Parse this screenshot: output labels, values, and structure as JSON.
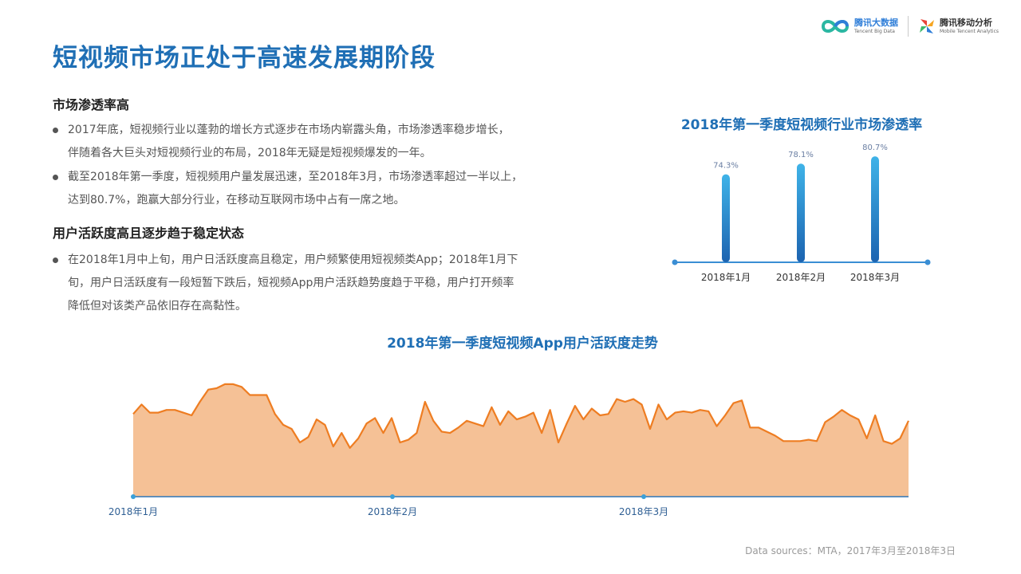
{
  "logos": {
    "tbd": {
      "name_cn": "腾讯大数据",
      "name_en": "Tencent Big Data"
    },
    "mta": {
      "name_cn": "腾讯移动分析",
      "name_en": "Mobile Tencent Analytics"
    }
  },
  "page_title": "短视频市场正处于高速发展期阶段",
  "sections": [
    {
      "heading": "市场渗透率高",
      "bullets": [
        {
          "line1": "2017年底，短视频行业以蓬勃的增长方式逐步在市场内崭露头角，市场渗透率稳步增长，",
          "line2": "伴随着各大巨头对短视频行业的布局，2018年无疑是短视频爆发的一年。"
        },
        {
          "line1": "截至2018年第一季度，短视频用户量发展迅速，至2018年3月，市场渗透率超过一半以上，",
          "line2": "达到80.7%，跑赢大部分行业，在移动互联网市场中占有一席之地。"
        }
      ]
    },
    {
      "heading": "用户活跃度高且逐步趋于稳定状态",
      "bullets": [
        {
          "line1": "在2018年1月中上旬，用户日活跃度高且稳定，用户频繁使用短视频类App；2018年1月下",
          "line2": "旬，用户日活跃度有一段短暂下跌后，短视频App用户活跃趋势度趋于平稳，用户打开频率",
          "line3": "降低但对该类产品依旧存在高黏性。"
        }
      ]
    }
  ],
  "chart_data": [
    {
      "type": "bar",
      "title": "2018年第一季度短视频行业市场渗透率",
      "categories": [
        "2018年1月",
        "2018年2月",
        "2018年3月"
      ],
      "values": [
        74.3,
        78.1,
        80.7
      ],
      "value_labels": [
        "74.3%",
        "78.1%",
        "80.7%"
      ],
      "unit": "%",
      "ylim": [
        0,
        85
      ],
      "colors": {
        "bar_top": "#3fb3e8",
        "bar_bottom": "#1c63b0",
        "axis": "#3a8ed4",
        "label": "#6b7fa3"
      }
    },
    {
      "type": "area",
      "title": "2018年第一季度短视频App用户活跃度走势",
      "x_labels": [
        "2018年1月",
        "2018年2月",
        "2018年3月"
      ],
      "values": [
        61,
        68,
        62,
        62,
        64,
        64,
        62,
        60,
        70,
        79,
        80,
        83,
        83,
        81,
        75,
        75,
        75,
        61,
        53,
        50,
        40,
        44,
        57,
        53,
        37,
        47,
        36,
        43,
        54,
        58,
        47,
        58,
        40,
        42,
        47,
        70,
        56,
        48,
        47,
        51,
        56,
        54,
        52,
        66,
        53,
        63,
        57,
        59,
        62,
        47,
        64,
        40,
        54,
        67,
        57,
        65,
        60,
        61,
        72,
        70,
        72,
        68,
        50,
        68,
        57,
        62,
        63,
        62,
        64,
        63,
        52,
        60,
        69,
        71,
        51,
        51,
        48,
        45,
        41,
        41,
        41,
        42,
        41,
        55,
        59,
        64,
        60,
        57,
        43,
        60,
        41,
        39,
        43,
        56
      ],
      "ylim": [
        0,
        100
      ],
      "grid": false,
      "colors": {
        "line": "#ee7d22",
        "fill": "#f5c196",
        "axis": "#2f75b5",
        "marker": "#3aa0d8"
      }
    }
  ],
  "footer": "Data sources：MTA，2017年3月至2018年3日"
}
